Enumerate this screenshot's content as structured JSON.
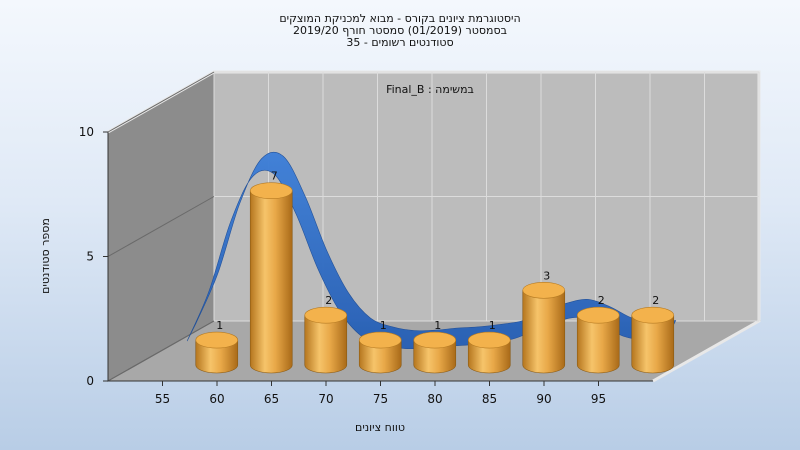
{
  "chart_data": {
    "type": "bar",
    "title_lines": [
      "היסטוגרמת ציונים בקורס - מבוא למכניקת המוצקים",
      "בסמסטר  (01/2019)  סמסטר חורף 2019/20",
      "סטודנטים רשומים - 35"
    ],
    "annotation": "במשימה : Final_B",
    "xlabel": "טווח ציונים",
    "ylabel": "מספר סטודנטים",
    "x_ticks": [
      55,
      60,
      65,
      70,
      75,
      80,
      85,
      90,
      95
    ],
    "y_ticks": [
      0,
      5,
      10
    ],
    "ylim": [
      0,
      10
    ],
    "xlim": [
      50,
      100
    ],
    "bars": [
      {
        "x": 57.5,
        "value": 1
      },
      {
        "x": 62.5,
        "value": 7
      },
      {
        "x": 67.5,
        "value": 2
      },
      {
        "x": 72.5,
        "value": 1
      },
      {
        "x": 77.5,
        "value": 1
      },
      {
        "x": 82.5,
        "value": 1
      },
      {
        "x": 87.5,
        "value": 3
      },
      {
        "x": 92.5,
        "value": 2
      },
      {
        "x": 97.5,
        "value": 2
      }
    ],
    "curve": {
      "x": [
        54,
        56,
        58,
        60,
        62,
        64,
        66,
        68,
        70,
        72,
        74,
        76,
        78,
        80,
        82,
        84,
        86,
        88,
        90,
        92,
        94,
        96,
        98
      ],
      "y": [
        1.0,
        3.0,
        5.8,
        7.6,
        7.7,
        6.1,
        3.9,
        2.2,
        1.2,
        0.85,
        0.7,
        0.72,
        0.8,
        0.85,
        0.95,
        1.1,
        1.45,
        1.8,
        1.95,
        1.65,
        1.2,
        1.05,
        1.1
      ]
    },
    "colors": {
      "bar": "#e0a040",
      "curve": "#2f6dc8",
      "back_wall": "#bcbcbc",
      "side_wall": "#8c8c8c",
      "floor": "#a8a8a8"
    },
    "grid": true,
    "legend": "none"
  }
}
